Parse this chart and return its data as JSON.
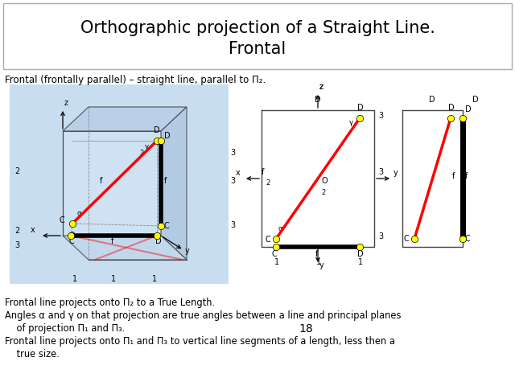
{
  "title": "Orthographic projection of a Straight Line.\nFrontal",
  "subtitle": "Frontal (frontally parallel) – straight line, parallel to Π₂.",
  "bottom_text_1": "Frontal line projects onto Π₂ to a True Length.",
  "bottom_text_2": "Angles α and γ on that projection are true angles between a line and principal planes",
  "bottom_text_3": "    of projection Π₁ and Π₃.",
  "bottom_text_4": "Frontal line projects onto Π₁ and Π₃ to vertical line segments of a length, less then a",
  "bottom_text_5": "    true size.",
  "page_number": "18",
  "cube_bg": "#c8ddf0",
  "title_border": "#999999"
}
